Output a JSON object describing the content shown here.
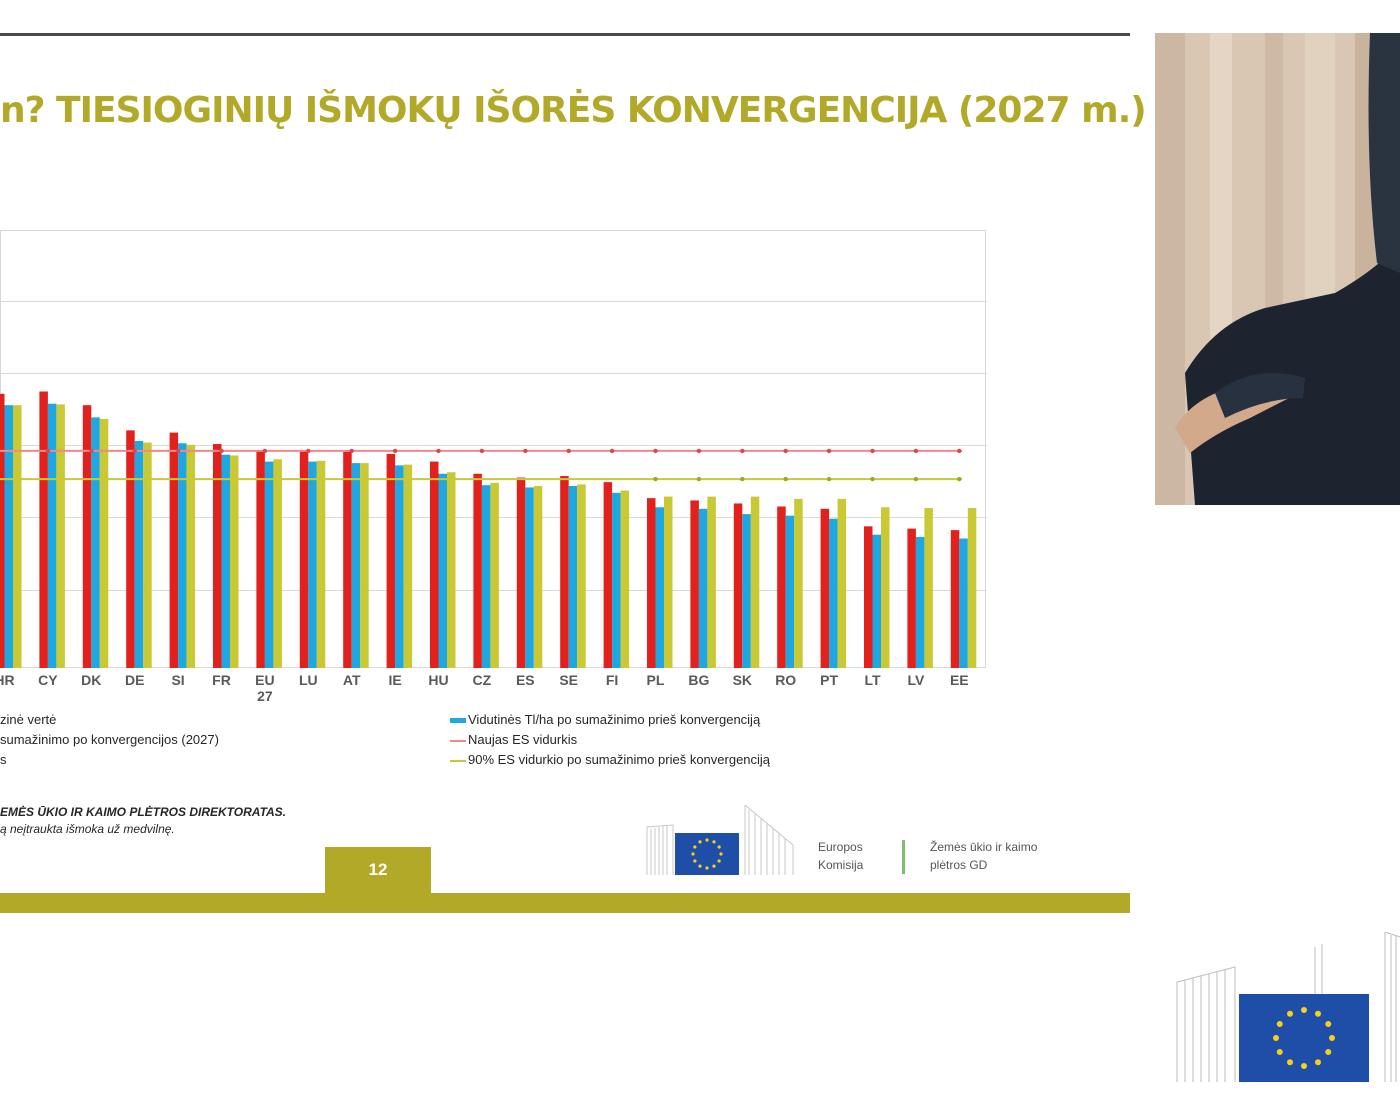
{
  "slide": {
    "title": "n? TIESIOGINIŲ IŠMOKŲ IŠORĖS KONVERGENCIJA (2027 m.)",
    "page_number": "12",
    "source_line1": "EMĖS ŪKIO IR KAIMO PLĖTROS DIREKTORATAS.",
    "source_line2": "ą neįtraukta išmoka už medvilnę.",
    "logo": {
      "org_line1": "Europos",
      "org_line2": "Komisija",
      "dg_line1": "Žemės ūkio ir kaimo",
      "dg_line2": "plėtros GD"
    }
  },
  "legend": {
    "left": [
      "zinė vertė",
      "sumažinimo po konvergencijos (2027)",
      "s"
    ],
    "right": [
      "Vidutinės Tl/ha po sumažinimo prieš konvergenciją",
      "Naujas ES vidurkis",
      "90% ES vidurkio po sumažinimo prieš konvergenciją"
    ]
  },
  "colors": {
    "accent": "#b3a929",
    "red_series": "#e2211c",
    "blue_series": "#1ea7e1",
    "yellow_series": "#c9c935",
    "new_avg_line": "#f0888c",
    "ninety_line": "#c9c935"
  },
  "chart_data": {
    "type": "bar",
    "categories": [
      "HR",
      "CY",
      "DK",
      "DE",
      "SI",
      "FR",
      "EU 27",
      "LU",
      "AT",
      "IE",
      "HU",
      "CZ",
      "ES",
      "SE",
      "FI",
      "PL",
      "BG",
      "SK",
      "RO",
      "PT",
      "LT",
      "LV",
      "EE"
    ],
    "series": [
      {
        "values": [
          360,
          363,
          345,
          312,
          309,
          294,
          285,
          285,
          284,
          281,
          271,
          255,
          250,
          252,
          244,
          223,
          220,
          216,
          212,
          209,
          186,
          183,
          181
        ]
      },
      {
        "name": "Vidutinės Tl/ha po sumažinimo prieš konvergenciją",
        "values": [
          345,
          347,
          329,
          298,
          295,
          280,
          271,
          271,
          269,
          266,
          255,
          240,
          237,
          239,
          230,
          211,
          209,
          202,
          200,
          196,
          175,
          172,
          170
        ]
      },
      {
        "values": [
          345,
          346,
          327,
          296,
          293,
          279,
          274,
          272,
          269,
          267,
          257,
          243,
          239,
          241,
          233,
          225,
          225,
          225,
          222,
          222,
          211,
          210,
          210
        ]
      }
    ],
    "reference_lines": [
      {
        "name": "Naujas ES vidurkis",
        "value": 285
      },
      {
        "name": "90% ES vidurkio po sumažinimo prieš konvergenciją",
        "value": 248
      }
    ],
    "ylim": [
      0,
      575
    ],
    "grid": true,
    "legend_position": "bottom"
  }
}
